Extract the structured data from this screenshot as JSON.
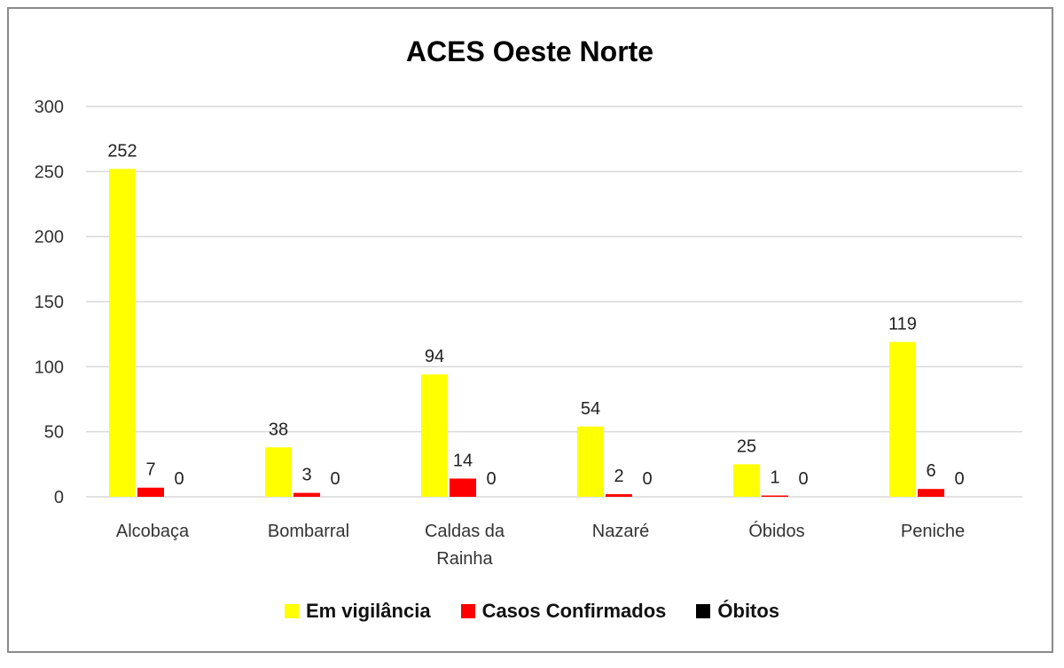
{
  "chart_data": {
    "type": "bar",
    "title": "ACES Oeste Norte",
    "categories": [
      "Alcobaça",
      "Bombarral",
      "Caldas da Rainha",
      "Nazaré",
      "Óbidos",
      "Peniche"
    ],
    "category_lines": [
      [
        "Alcobaça"
      ],
      [
        "Bombarral"
      ],
      [
        "Caldas da",
        "Rainha"
      ],
      [
        "Nazaré"
      ],
      [
        "Óbidos"
      ],
      [
        "Peniche"
      ]
    ],
    "series": [
      {
        "name": "Em vigilância",
        "color": "#ffff00",
        "values": [
          252,
          38,
          94,
          54,
          25,
          119
        ]
      },
      {
        "name": "Casos Confirmados",
        "color": "#ff0000",
        "values": [
          7,
          3,
          14,
          2,
          1,
          6
        ]
      },
      {
        "name": "Óbitos",
        "color": "#000000",
        "values": [
          0,
          0,
          0,
          0,
          0,
          0
        ]
      }
    ],
    "ylim": [
      0,
      300
    ],
    "yticks": [
      "0",
      "50",
      "100",
      "150",
      "200",
      "250",
      "300"
    ],
    "grid": true,
    "legend_position": "bottom",
    "data_labels": true
  }
}
